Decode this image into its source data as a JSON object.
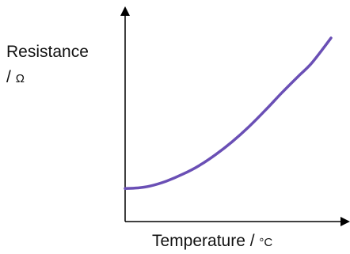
{
  "chart_data": {
    "type": "line",
    "title": "",
    "ylabel_name": "Resistance",
    "ylabel_sep": "/",
    "ylabel_unit": "Ω",
    "xlabel_name": "Temperature /",
    "xlabel_unit": "°C",
    "xlim": [
      0,
      100
    ],
    "ylim": [
      0,
      100
    ],
    "grid": false,
    "legend": "none",
    "series": [
      {
        "color": "#6a4fb5",
        "x": [
          0,
          6,
          12,
          20,
          28,
          36,
          44,
          52,
          60,
          68,
          76,
          84,
          90,
          96,
          100
        ],
        "y": [
          18,
          18.3,
          19.3,
          22,
          25.8,
          30.5,
          36.5,
          43.5,
          51.5,
          60.5,
          70,
          79,
          85.5,
          94,
          100
        ]
      }
    ]
  }
}
